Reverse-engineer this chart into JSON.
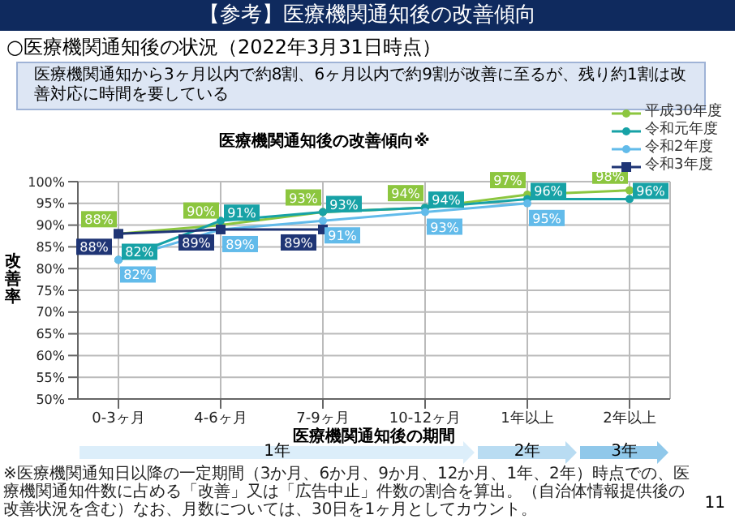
{
  "chart_data": {
    "type": "line",
    "title": "【参考】医療機関通知後の改善傾向",
    "subtitle": "医療機関通知後の改善傾向※",
    "xlabel": "医療機関通知後の期間",
    "ylabel": "改善率",
    "categories": [
      "0-3ヶ月",
      "4-6ヶ月",
      "7-9ヶ月",
      "10-12ヶ月",
      "1年以上",
      "2年以上"
    ],
    "series": [
      {
        "name": "平成30年度",
        "color": "#8cc63f",
        "marker": "circle",
        "values": [
          88,
          90,
          93,
          94,
          97,
          98
        ],
        "value_labels": [
          "88%",
          "90%",
          "93%",
          "94%",
          "97%",
          "98%"
        ]
      },
      {
        "name": "令和元年度",
        "color": "#17a2a6",
        "marker": "circle",
        "values": [
          82,
          91,
          93,
          94,
          96,
          96
        ],
        "value_labels": [
          "82%",
          "91%",
          "93%",
          "94%",
          "96%",
          "96%"
        ]
      },
      {
        "name": "令和2年度",
        "color": "#62bbea",
        "marker": "circle",
        "values": [
          82,
          89,
          91,
          93,
          95,
          null
        ],
        "value_labels": [
          "82%",
          "89%",
          "91%",
          "93%",
          "95%",
          null
        ]
      },
      {
        "name": "令和3年度",
        "color": "#1f3575",
        "marker": "square",
        "values": [
          88,
          89,
          89,
          null,
          null,
          null
        ],
        "value_labels": [
          "88%",
          "89%",
          "89%",
          null,
          null,
          null
        ]
      }
    ],
    "ylim": [
      50,
      100
    ],
    "yticks": [
      {
        "value": 50,
        "label": "50%"
      },
      {
        "value": 55,
        "label": "55%"
      },
      {
        "value": 60,
        "label": "60%"
      },
      {
        "value": 65,
        "label": "65%"
      },
      {
        "value": 70,
        "label": "70%"
      },
      {
        "value": 75,
        "label": "75%"
      },
      {
        "value": 80,
        "label": "80%"
      },
      {
        "value": 85,
        "label": "85%"
      },
      {
        "value": 90,
        "label": "90%"
      },
      {
        "value": 95,
        "label": "95%"
      },
      {
        "value": 100,
        "label": "100%"
      }
    ],
    "grid": true,
    "legend": "top right",
    "annotations": [
      "○医療機関通知後の状況（2022年3月31日時点）",
      "医療機関通知から3ヶ月以内で約8割、6ヶ月以内で約9割が改善に至るが、残り約1割は改善対応に時間を要している",
      "1年",
      "2年",
      "3年",
      "※医療機関通知日以降の一定期間（3か月、6か月、9か月、12か月、1年、2年）時点での、医療機関通知件数に占める「改善」又は「広告中止」件数の割合を算出。（自治体情報提供後の改善状況を含む）なお、月数については、30日を1ヶ月としてカウント。",
      "11"
    ]
  }
}
